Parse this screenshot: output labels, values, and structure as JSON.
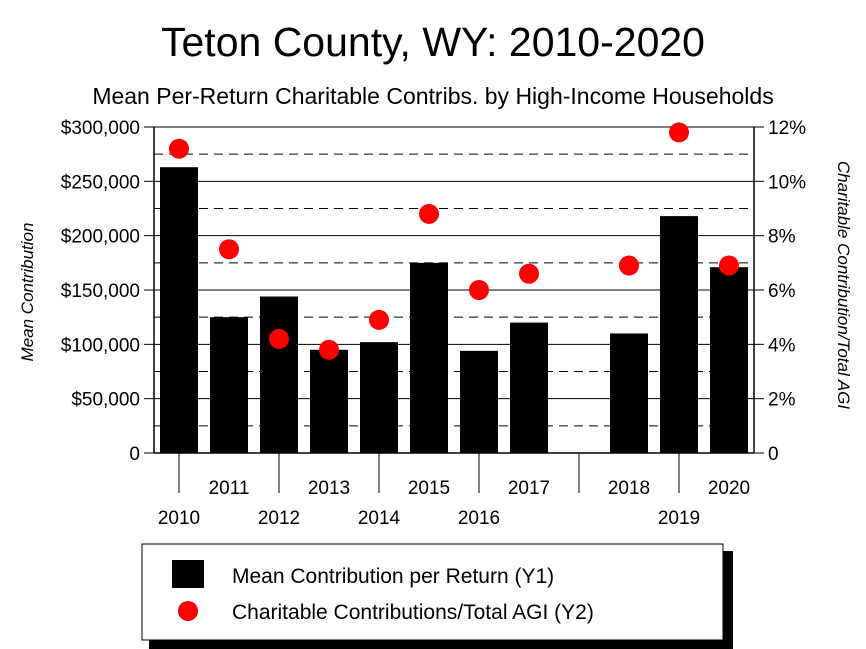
{
  "chart_data": {
    "type": "bar",
    "title": "Teton County, WY: 2010-2020",
    "subtitle": "Mean Per-Return Charitable Contribs. by High-Income Households",
    "ylabel": "Mean Contribution",
    "y2label": "Charitable Contribution/Total AGI",
    "categories": [
      "2010",
      "2011",
      "2012",
      "2013",
      "2014",
      "2015",
      "2016",
      "2017",
      "",
      "2018",
      "2019",
      "2020"
    ],
    "ylim": [
      0,
      300000
    ],
    "y2lim": [
      0,
      0.12
    ],
    "yticks": [
      "0",
      "$50,000",
      "$100,000",
      "$150,000",
      "$200,000",
      "$250,000",
      "$300,000"
    ],
    "y2ticks": [
      "0",
      "2%",
      "4%",
      "6%",
      "8%",
      "10%",
      "12%"
    ],
    "grid": "horizontal",
    "series": [
      {
        "name": "Mean Contribution per Return (Y1)",
        "type": "bar",
        "axis": "y1",
        "color": "#000000",
        "values": [
          263000,
          125000,
          144000,
          95000,
          102000,
          175000,
          94000,
          120000,
          null,
          110000,
          218000,
          171000
        ]
      },
      {
        "name": "Charitable Contributions/Total AGI (Y2)",
        "type": "scatter",
        "axis": "y2",
        "color": "#ff0000",
        "values": [
          0.112,
          0.075,
          0.042,
          0.038,
          0.049,
          0.088,
          0.06,
          0.066,
          null,
          0.069,
          0.118,
          0.069
        ]
      }
    ],
    "legend_position": "bottom"
  }
}
